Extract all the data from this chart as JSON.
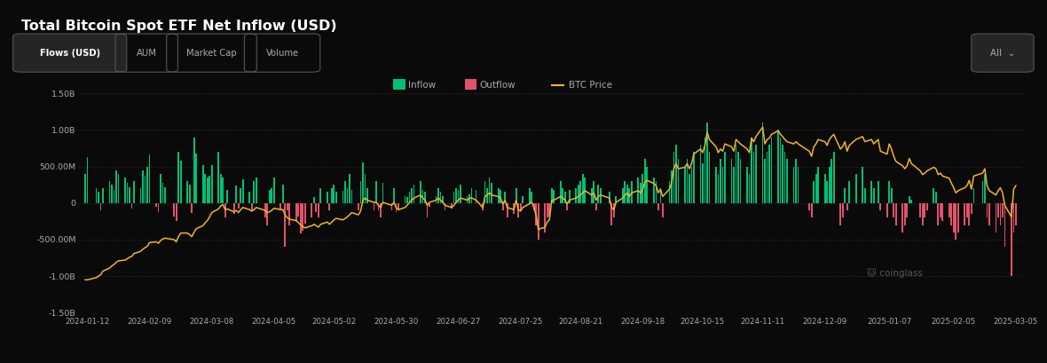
{
  "title": "Total Bitcoin Spot ETF Net Inflow (USD)",
  "background_color": "#0a0a0a",
  "grid_color": "#2a2a2a",
  "text_color": "#aaaaaa",
  "inflow_color": "#00c076",
  "outflow_color": "#e0536a",
  "btc_line_color": "#f0b429",
  "ylim": [
    -1500000000,
    1500000000
  ],
  "legend": [
    "Inflow",
    "Outflow",
    "BTC Price"
  ],
  "subtitle_tabs": [
    "Flows (USD)",
    "AUM",
    "Market Cap",
    "Volume"
  ],
  "active_tab": "Flows (USD)",
  "dates": [
    "2024-01-11",
    "2024-01-12",
    "2024-01-16",
    "2024-01-17",
    "2024-01-18",
    "2024-01-19",
    "2024-01-22",
    "2024-01-23",
    "2024-01-24",
    "2024-01-25",
    "2024-01-26",
    "2024-01-29",
    "2024-01-30",
    "2024-01-31",
    "2024-02-01",
    "2024-02-02",
    "2024-02-05",
    "2024-02-06",
    "2024-02-07",
    "2024-02-08",
    "2024-02-09",
    "2024-02-12",
    "2024-02-13",
    "2024-02-14",
    "2024-02-15",
    "2024-02-16",
    "2024-02-20",
    "2024-02-21",
    "2024-02-22",
    "2024-02-23",
    "2024-02-26",
    "2024-02-27",
    "2024-02-28",
    "2024-02-29",
    "2024-03-01",
    "2024-03-04",
    "2024-03-05",
    "2024-03-06",
    "2024-03-07",
    "2024-03-08",
    "2024-03-11",
    "2024-03-12",
    "2024-03-13",
    "2024-03-14",
    "2024-03-15",
    "2024-03-18",
    "2024-03-19",
    "2024-03-20",
    "2024-03-21",
    "2024-03-22",
    "2024-03-25",
    "2024-03-26",
    "2024-03-27",
    "2024-03-28",
    "2024-04-01",
    "2024-04-02",
    "2024-04-03",
    "2024-04-04",
    "2024-04-05",
    "2024-04-08",
    "2024-04-09",
    "2024-04-10",
    "2024-04-11",
    "2024-04-12",
    "2024-04-15",
    "2024-04-16",
    "2024-04-17",
    "2024-04-18",
    "2024-04-19",
    "2024-04-22",
    "2024-04-23",
    "2024-04-24",
    "2024-04-25",
    "2024-04-26",
    "2024-04-29",
    "2024-04-30",
    "2024-05-01",
    "2024-05-02",
    "2024-05-03",
    "2024-05-06",
    "2024-05-07",
    "2024-05-08",
    "2024-05-09",
    "2024-05-10",
    "2024-05-13",
    "2024-05-14",
    "2024-05-15",
    "2024-05-16",
    "2024-05-17",
    "2024-05-20",
    "2024-05-21",
    "2024-05-22",
    "2024-05-23",
    "2024-05-24",
    "2024-05-28",
    "2024-05-29",
    "2024-05-30",
    "2024-05-31",
    "2024-06-03",
    "2024-06-04",
    "2024-06-05",
    "2024-06-06",
    "2024-06-07",
    "2024-06-10",
    "2024-06-11",
    "2024-06-12",
    "2024-06-13",
    "2024-06-14",
    "2024-06-17",
    "2024-06-18",
    "2024-06-19",
    "2024-06-20",
    "2024-06-21",
    "2024-06-24",
    "2024-06-25",
    "2024-06-26",
    "2024-06-27",
    "2024-06-28",
    "2024-07-01",
    "2024-07-02",
    "2024-07-03",
    "2024-07-05",
    "2024-07-08",
    "2024-07-09",
    "2024-07-10",
    "2024-07-11",
    "2024-07-12",
    "2024-07-15",
    "2024-07-16",
    "2024-07-17",
    "2024-07-18",
    "2024-07-19",
    "2024-07-22",
    "2024-07-23",
    "2024-07-24",
    "2024-07-25",
    "2024-07-26",
    "2024-07-29",
    "2024-07-30",
    "2024-07-31",
    "2024-08-01",
    "2024-08-02",
    "2024-08-05",
    "2024-08-06",
    "2024-08-07",
    "2024-08-08",
    "2024-08-09",
    "2024-08-12",
    "2024-08-13",
    "2024-08-14",
    "2024-08-15",
    "2024-08-16",
    "2024-08-19",
    "2024-08-20",
    "2024-08-21",
    "2024-08-22",
    "2024-08-23",
    "2024-08-26",
    "2024-08-27",
    "2024-08-28",
    "2024-08-29",
    "2024-08-30",
    "2024-09-03",
    "2024-09-04",
    "2024-09-05",
    "2024-09-06",
    "2024-09-09",
    "2024-09-10",
    "2024-09-11",
    "2024-09-12",
    "2024-09-13",
    "2024-09-16",
    "2024-09-17",
    "2024-09-18",
    "2024-09-19",
    "2024-09-20",
    "2024-09-23",
    "2024-09-24",
    "2024-09-25",
    "2024-09-26",
    "2024-09-27",
    "2024-09-30",
    "2024-10-01",
    "2024-10-02",
    "2024-10-03",
    "2024-10-04",
    "2024-10-07",
    "2024-10-08",
    "2024-10-09",
    "2024-10-10",
    "2024-10-11",
    "2024-10-14",
    "2024-10-15",
    "2024-10-16",
    "2024-10-17",
    "2024-10-18",
    "2024-10-21",
    "2024-10-22",
    "2024-10-23",
    "2024-10-24",
    "2024-10-25",
    "2024-10-28",
    "2024-10-29",
    "2024-10-30",
    "2024-10-31",
    "2024-11-01",
    "2024-11-04",
    "2024-11-05",
    "2024-11-06",
    "2024-11-07",
    "2024-11-08",
    "2024-11-11",
    "2024-11-12",
    "2024-11-13",
    "2024-11-14",
    "2024-11-15",
    "2024-11-18",
    "2024-11-19",
    "2024-11-20",
    "2024-11-21",
    "2024-11-22",
    "2024-11-25",
    "2024-11-26",
    "2024-11-27",
    "2024-12-02",
    "2024-12-03",
    "2024-12-04",
    "2024-12-05",
    "2024-12-06",
    "2024-12-09",
    "2024-12-10",
    "2024-12-11",
    "2024-12-12",
    "2024-12-13",
    "2024-12-16",
    "2024-12-17",
    "2024-12-18",
    "2024-12-19",
    "2024-12-20",
    "2024-12-23",
    "2024-12-26",
    "2024-12-27",
    "2024-12-30",
    "2024-12-31",
    "2025-01-02",
    "2025-01-03",
    "2025-01-06",
    "2025-01-07",
    "2025-01-08",
    "2025-01-09",
    "2025-01-10",
    "2025-01-13",
    "2025-01-14",
    "2025-01-15",
    "2025-01-16",
    "2025-01-17",
    "2025-01-21",
    "2025-01-22",
    "2025-01-23",
    "2025-01-24",
    "2025-01-27",
    "2025-01-28",
    "2025-01-29",
    "2025-01-30",
    "2025-01-31",
    "2025-02-03",
    "2025-02-04",
    "2025-02-05",
    "2025-02-06",
    "2025-02-07",
    "2025-02-10",
    "2025-02-11",
    "2025-02-12",
    "2025-02-13",
    "2025-02-14",
    "2025-02-18",
    "2025-02-19",
    "2025-02-20",
    "2025-02-21",
    "2025-02-24",
    "2025-02-25",
    "2025-02-26",
    "2025-02-27",
    "2025-02-28",
    "2025-03-03",
    "2025-03-04",
    "2025-03-05"
  ],
  "flows_M": [
    400,
    630,
    200,
    150,
    -100,
    200,
    300,
    250,
    180,
    450,
    400,
    350,
    280,
    220,
    -80,
    300,
    200,
    450,
    380,
    500,
    670,
    -50,
    -120,
    400,
    280,
    220,
    -180,
    -250,
    700,
    580,
    300,
    250,
    -130,
    900,
    680,
    520,
    400,
    350,
    380,
    520,
    700,
    400,
    350,
    -200,
    180,
    -150,
    240,
    -80,
    200,
    320,
    150,
    -100,
    300,
    350,
    -200,
    -300,
    180,
    200,
    350,
    -100,
    250,
    -600,
    -100,
    -300,
    -250,
    -180,
    -420,
    -380,
    -280,
    -200,
    80,
    -120,
    -200,
    200,
    150,
    -100,
    200,
    250,
    150,
    170,
    300,
    200,
    400,
    180,
    -100,
    300,
    560,
    400,
    200,
    -100,
    300,
    -100,
    -200,
    280,
    -100,
    200,
    -120,
    -100,
    100,
    80,
    150,
    200,
    250,
    300,
    180,
    150,
    -200,
    -50,
    100,
    200,
    150,
    100,
    -100,
    -80,
    150,
    200,
    180,
    250,
    100,
    120,
    200,
    180,
    -100,
    300,
    200,
    350,
    280,
    200,
    180,
    -100,
    150,
    -200,
    -150,
    200,
    -200,
    -100,
    100,
    200,
    150,
    -100,
    -300,
    -500,
    -400,
    -200,
    -180,
    200,
    180,
    300,
    200,
    150,
    -100,
    180,
    200,
    250,
    300,
    400,
    350,
    200,
    300,
    -100,
    250,
    200,
    150,
    -300,
    -200,
    100,
    200,
    300,
    250,
    200,
    300,
    350,
    280,
    400,
    600,
    500,
    350,
    300,
    -100,
    200,
    -200,
    300,
    450,
    700,
    800,
    600,
    500,
    600,
    400,
    500,
    700,
    800,
    550,
    900,
    1100,
    700,
    500,
    400,
    600,
    500,
    700,
    600,
    500,
    800,
    700,
    600,
    500,
    400,
    900,
    700,
    800,
    1100,
    600,
    700,
    800,
    900,
    1000,
    900,
    800,
    700,
    600,
    500,
    600,
    500,
    -100,
    -200,
    300,
    400,
    500,
    400,
    300,
    500,
    600,
    700,
    -300,
    -200,
    200,
    -100,
    300,
    400,
    500,
    200,
    300,
    200,
    300,
    -100,
    -200,
    300,
    200,
    -200,
    -300,
    -400,
    -300,
    -200,
    100,
    50,
    -200,
    -300,
    -200,
    -100,
    200,
    150,
    -300,
    -200,
    -250,
    -200,
    -300,
    -400,
    -500,
    -400,
    -300,
    -200,
    -300,
    -150,
    200,
    300,
    400,
    -200,
    -300,
    -400,
    -200,
    -300,
    -200,
    -600,
    -1000,
    -400,
    -300
  ],
  "btc_price_norm": [
    -1.05,
    -1.05,
    -1.02,
    -1.0,
    -0.98,
    -0.93,
    -0.89,
    -0.86,
    -0.84,
    -0.81,
    -0.79,
    -0.78,
    -0.76,
    -0.74,
    -0.73,
    -0.69,
    -0.66,
    -0.63,
    -0.61,
    -0.59,
    -0.54,
    -0.53,
    -0.55,
    -0.51,
    -0.49,
    -0.48,
    -0.5,
    -0.53,
    -0.46,
    -0.41,
    -0.41,
    -0.43,
    -0.46,
    -0.4,
    -0.35,
    -0.31,
    -0.27,
    -0.24,
    -0.19,
    -0.13,
    -0.08,
    -0.04,
    -0.02,
    -0.09,
    -0.08,
    -0.12,
    -0.1,
    -0.13,
    -0.09,
    -0.06,
    -0.09,
    -0.11,
    -0.09,
    -0.06,
    -0.1,
    -0.13,
    -0.12,
    -0.1,
    -0.07,
    -0.09,
    -0.09,
    -0.16,
    -0.2,
    -0.22,
    -0.24,
    -0.27,
    -0.3,
    -0.32,
    -0.34,
    -0.31,
    -0.29,
    -0.31,
    -0.33,
    -0.29,
    -0.26,
    -0.29,
    -0.26,
    -0.23,
    -0.21,
    -0.23,
    -0.21,
    -0.19,
    -0.16,
    -0.13,
    -0.16,
    -0.11,
    0.04,
    0.07,
    0.04,
    0.01,
    0.01,
    -0.03,
    -0.06,
    0.01,
    -0.03,
    0.01,
    -0.06,
    -0.09,
    -0.06,
    -0.03,
    0.01,
    0.04,
    0.07,
    0.11,
    0.07,
    0.04,
    -0.03,
    0.01,
    0.04,
    0.07,
    0.04,
    0.01,
    -0.03,
    -0.06,
    -0.03,
    0.01,
    0.04,
    0.07,
    0.04,
    0.07,
    0.07,
    0.04,
    -0.06,
    0.09,
    0.11,
    0.14,
    0.11,
    0.09,
    0.07,
    -0.01,
    0.04,
    -0.06,
    -0.09,
    0.04,
    -0.09,
    -0.11,
    -0.06,
    -0.01,
    0.01,
    -0.06,
    -0.16,
    -0.36,
    -0.33,
    -0.26,
    -0.23,
    0.04,
    0.04,
    0.09,
    0.07,
    0.04,
    -0.01,
    0.04,
    0.07,
    0.09,
    0.11,
    0.14,
    0.17,
    0.11,
    0.14,
    0.04,
    0.09,
    0.11,
    0.07,
    -0.06,
    -0.09,
    0.01,
    0.07,
    0.11,
    0.14,
    0.09,
    0.14,
    0.17,
    0.14,
    0.19,
    0.29,
    0.31,
    0.27,
    0.24,
    0.14,
    0.19,
    0.09,
    0.19,
    0.27,
    0.47,
    0.54,
    0.47,
    0.49,
    0.54,
    0.47,
    0.54,
    0.67,
    0.74,
    0.69,
    0.79,
    0.97,
    0.87,
    0.77,
    0.69,
    0.74,
    0.71,
    0.81,
    0.77,
    0.71,
    0.87,
    0.84,
    0.81,
    0.74,
    0.69,
    0.89,
    0.84,
    0.91,
    1.04,
    0.81,
    0.87,
    0.89,
    0.94,
    0.99,
    0.94,
    0.91,
    0.87,
    0.84,
    0.81,
    0.84,
    0.81,
    0.71,
    0.64,
    0.77,
    0.81,
    0.87,
    0.84,
    0.79,
    0.87,
    0.91,
    0.94,
    0.74,
    0.77,
    0.84,
    0.71,
    0.79,
    0.87,
    0.91,
    0.84,
    0.87,
    0.81,
    0.87,
    0.71,
    0.67,
    0.81,
    0.74,
    0.64,
    0.57,
    0.51,
    0.47,
    0.51,
    0.61,
    0.54,
    0.44,
    0.39,
    0.41,
    0.44,
    0.49,
    0.47,
    0.39,
    0.41,
    0.37,
    0.34,
    0.27,
    0.21,
    0.14,
    0.17,
    0.21,
    0.24,
    0.31,
    0.19,
    0.37,
    0.41,
    0.47,
    0.24,
    0.17,
    0.11,
    0.17,
    0.21,
    0.14,
    -0.03,
    -0.19,
    0.19,
    0.24
  ],
  "xtick_labels": [
    "2024-01-12",
    "2024-02-09",
    "2024-03-08",
    "2024-04-05",
    "2024-05-02",
    "2024-05-30",
    "2024-06-27",
    "2024-07-25",
    "2024-08-21",
    "2024-09-18",
    "2024-10-15",
    "2024-11-11",
    "2024-12-09",
    "2025-01-07",
    "2025-02-05",
    "2025-03-05"
  ],
  "ytick_values": [
    -1500000000,
    -1000000000,
    -500000000,
    0,
    500000000,
    1000000000,
    1500000000
  ],
  "ytick_labels": [
    "-1.50B",
    "-1.00B",
    "-500.00M",
    "0",
    "500.00M",
    "1.00B",
    "1.50B"
  ]
}
